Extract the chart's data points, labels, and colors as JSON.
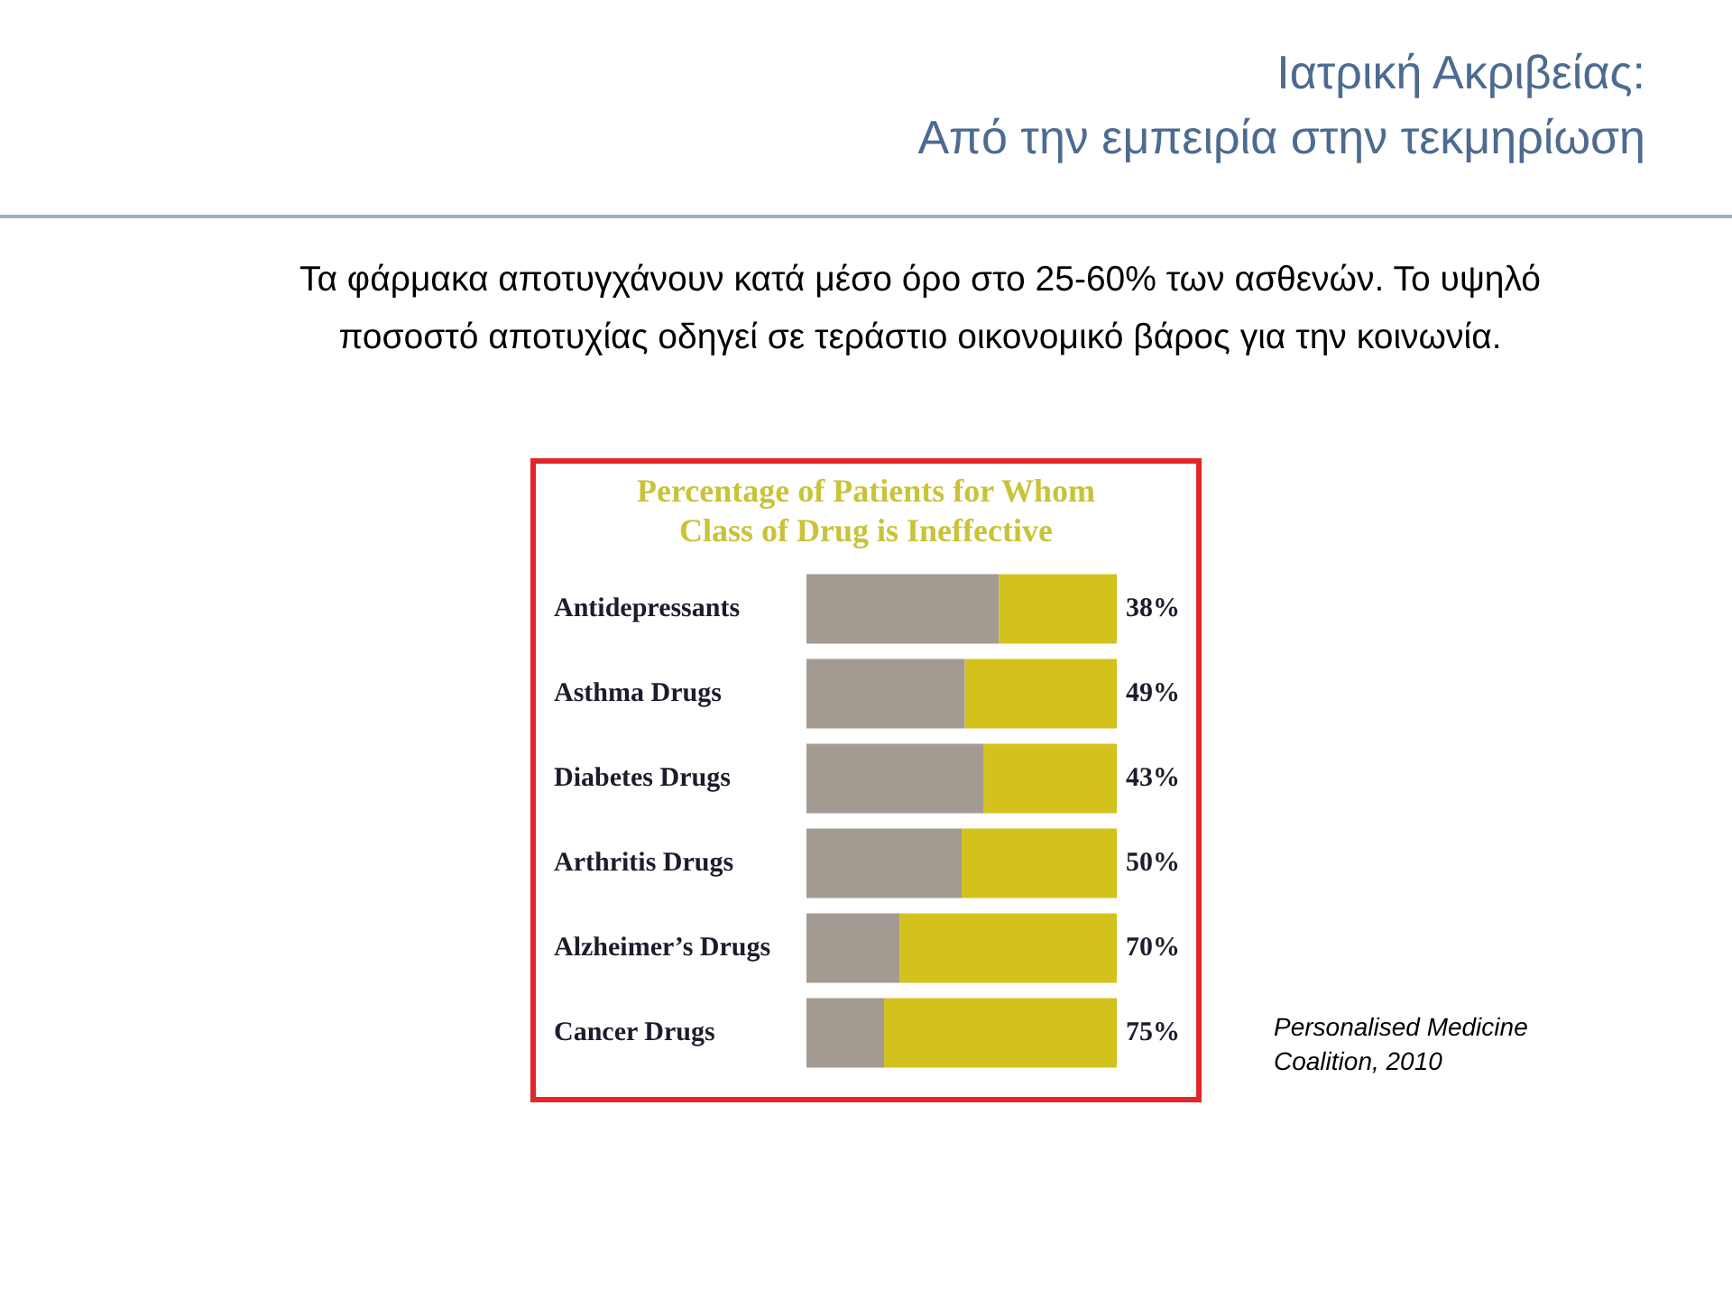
{
  "chart_data": {
    "type": "bar",
    "orientation": "horizontal",
    "stacked": true,
    "title": "Percentage of Patients for Whom Class of Drug is Ineffective",
    "annotations": [
      "Ιατρική Ακριβείας:\nΑπό την εμπειρία στην τεκμηρίωση",
      "Τα φάρμακα αποτυγχάνουν κατά μέσο όρο στο 25-60% των ασθενών. Το υψηλό ποσοστό αποτυχίας οδηγεί σε τεράστιο οικονομικό βάρος για την κοινωνία.",
      "Personalised Medicine Coalition, 2010"
    ],
    "categories": [
      "Antidepressants",
      "Asthma Drugs",
      "Diabetes Drugs",
      "Arthritis Drugs",
      "Alzheimer’s Drugs",
      "Cancer Drugs"
    ],
    "series": [
      {
        "color": "#a39a92",
        "values": [
          62,
          51,
          57,
          50,
          30,
          25
        ]
      },
      {
        "color": "#d4c21c",
        "values": [
          38,
          49,
          43,
          50,
          70,
          75
        ],
        "value_labels": [
          "38%",
          "49%",
          "43%",
          "50%",
          "70%",
          "75%"
        ]
      }
    ],
    "xlim": [
      0,
      100
    ],
    "tick_labels": "y",
    "grid": false,
    "legend": false
  }
}
